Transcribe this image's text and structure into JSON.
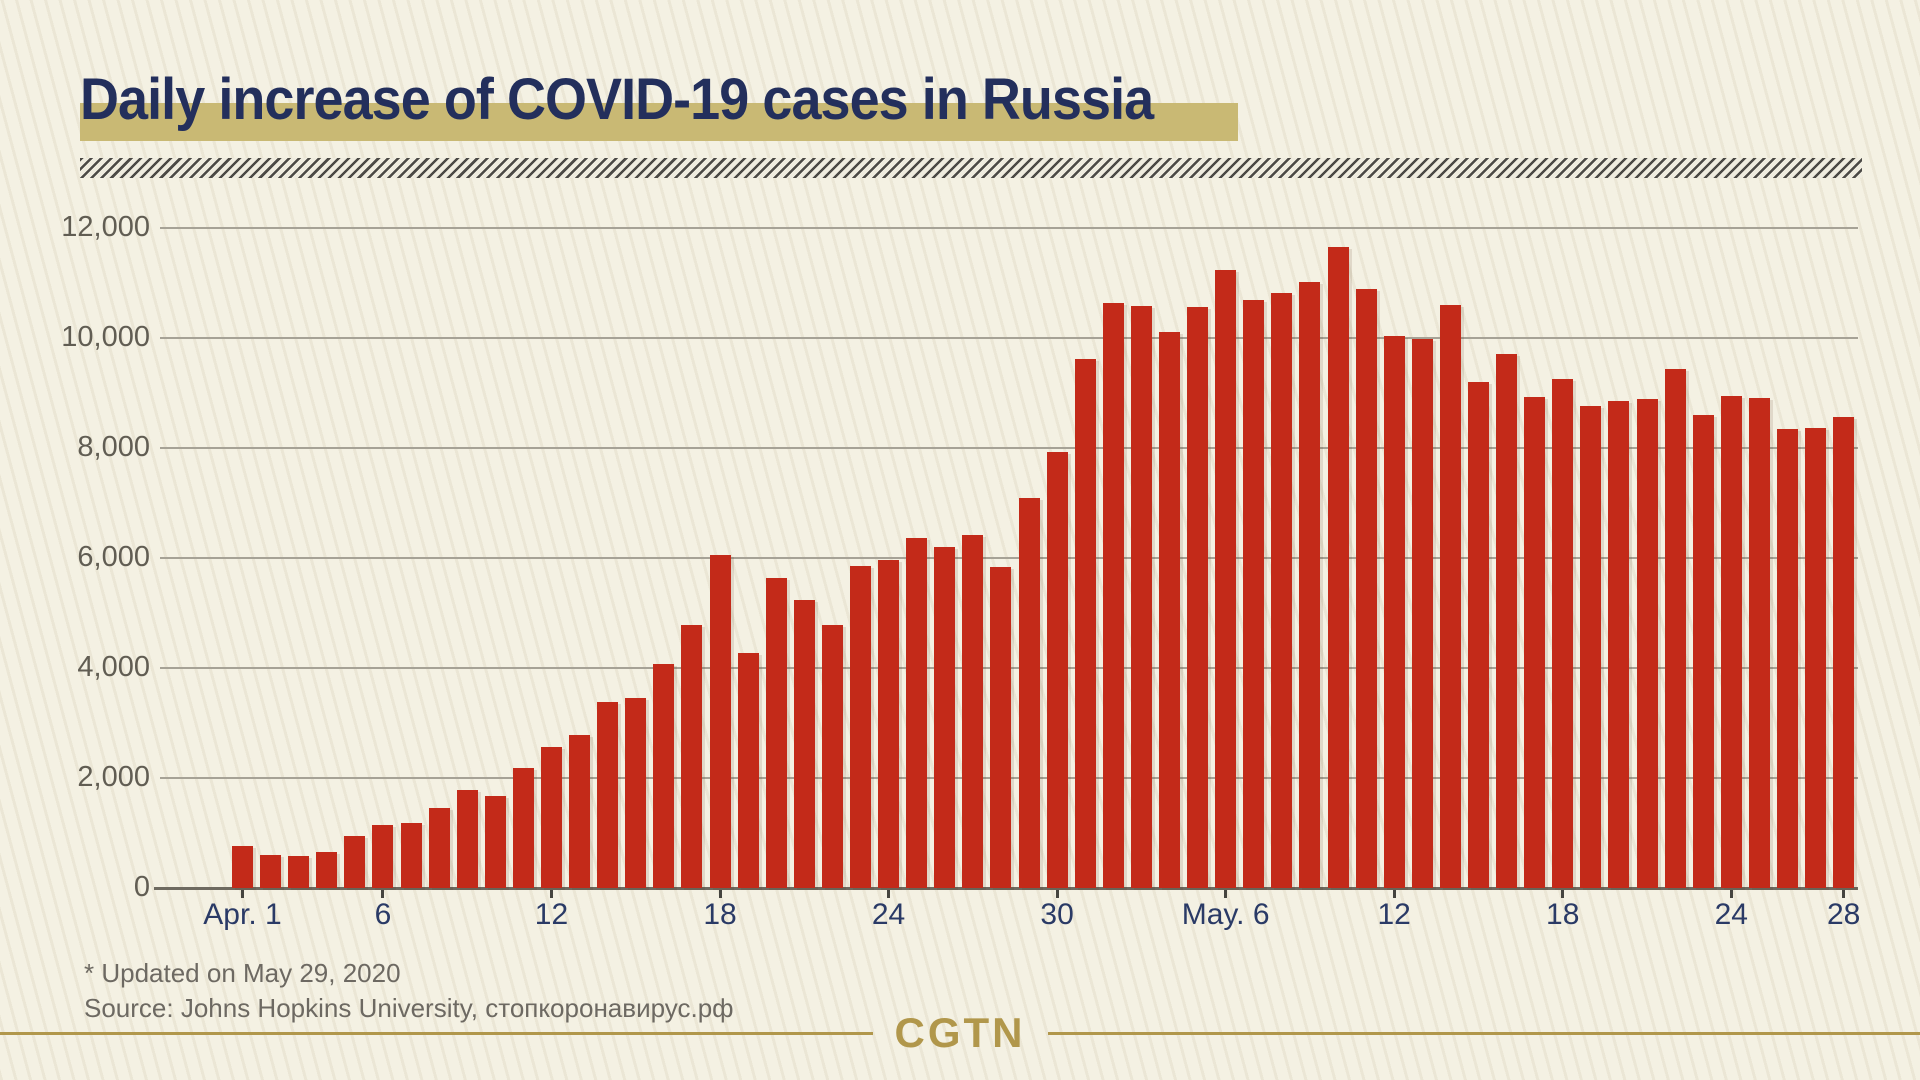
{
  "title": "Daily increase of COVID-19 cases in Russia",
  "footer": {
    "updated": "* Updated on May 29, 2020",
    "source": "Source: Johns Hopkins University, стопкоронавирус.рф"
  },
  "logo": "CGTN",
  "colors": {
    "background": "#f4f1e3",
    "title_navy": "#232f5c",
    "highlight_gold": "#c9b974",
    "bar_red": "#c32a19",
    "gridline_gray": "#a6a296",
    "axis_gray": "#6e6a60",
    "x_label_navy": "#2a3a66",
    "footer_gray": "#6d6962",
    "logo_gold": "#b1974b"
  },
  "chart_data": {
    "type": "bar",
    "title": "Daily increase of COVID-19 cases in Russia",
    "xlabel": "",
    "ylabel": "",
    "ylim": [
      0,
      12000
    ],
    "grid": true,
    "legend": "none",
    "categories": [
      "Apr 1",
      "Apr 2",
      "Apr 3",
      "Apr 4",
      "Apr 5",
      "Apr 6",
      "Apr 7",
      "Apr 8",
      "Apr 9",
      "Apr 10",
      "Apr 11",
      "Apr 12",
      "Apr 13",
      "Apr 14",
      "Apr 15",
      "Apr 16",
      "Apr 17",
      "Apr 18",
      "Apr 19",
      "Apr 20",
      "Apr 21",
      "Apr 22",
      "Apr 23",
      "Apr 24",
      "Apr 25",
      "Apr 26",
      "Apr 27",
      "Apr 28",
      "Apr 29",
      "Apr 30",
      "May 1",
      "May 2",
      "May 3",
      "May 4",
      "May 5",
      "May 6",
      "May 7",
      "May 8",
      "May 9",
      "May 10",
      "May 11",
      "May 12",
      "May 13",
      "May 14",
      "May 15",
      "May 16",
      "May 17",
      "May 18",
      "May 19",
      "May 20",
      "May 21",
      "May 22",
      "May 23",
      "May 24",
      "May 25",
      "May 26",
      "May 27",
      "May 28"
    ],
    "values": [
      771,
      601,
      582,
      658,
      954,
      1154,
      1175,
      1459,
      1786,
      1667,
      2186,
      2558,
      2774,
      3388,
      3448,
      4070,
      4785,
      6060,
      4268,
      5642,
      5236,
      4774,
      5849,
      5966,
      6361,
      6198,
      6411,
      5841,
      7099,
      7933,
      9623,
      10633,
      10581,
      10102,
      10559,
      11231,
      10699,
      10817,
      11012,
      11656,
      10899,
      10028,
      9974,
      10598,
      9200,
      9709,
      8926,
      9263,
      8764,
      8849,
      8894,
      9434,
      8599,
      8946,
      8915,
      8338,
      8371,
      8572
    ],
    "y_ticks": [
      0,
      2000,
      4000,
      6000,
      8000,
      10000,
      12000
    ],
    "y_tick_labels": [
      "0",
      "2,000",
      "4,000",
      "6,000",
      "8,000",
      "10,000",
      "12,000"
    ],
    "x_tick_labels": [
      {
        "label": "Apr. 1",
        "index": 0
      },
      {
        "label": "6",
        "index": 5
      },
      {
        "label": "12",
        "index": 11
      },
      {
        "label": "18",
        "index": 17
      },
      {
        "label": "24",
        "index": 23
      },
      {
        "label": "30",
        "index": 29
      },
      {
        "label": "May. 6",
        "index": 35
      },
      {
        "label": "12",
        "index": 41
      },
      {
        "label": "18",
        "index": 47
      },
      {
        "label": "24",
        "index": 53
      },
      {
        "label": "28",
        "index": 57
      }
    ]
  }
}
